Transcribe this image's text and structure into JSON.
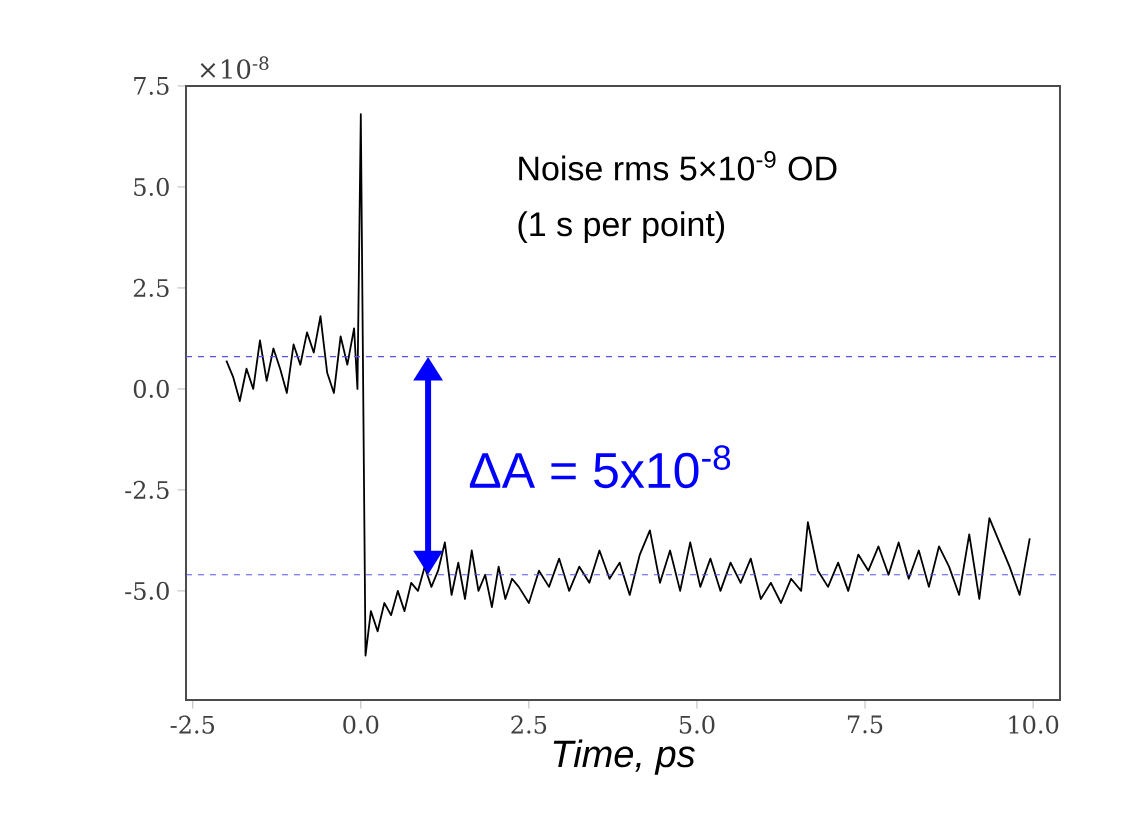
{
  "chart_data": {
    "type": "line",
    "xlabel": "Time, ps",
    "x": [
      -2.0,
      -1.9,
      -1.8,
      -1.7,
      -1.6,
      -1.5,
      -1.4,
      -1.3,
      -1.2,
      -1.1,
      -1.0,
      -0.9,
      -0.8,
      -0.7,
      -0.6,
      -0.5,
      -0.4,
      -0.3,
      -0.2,
      -0.1,
      -0.05,
      0.0,
      0.07,
      0.15,
      0.25,
      0.35,
      0.45,
      0.55,
      0.65,
      0.75,
      0.85,
      0.95,
      1.05,
      1.15,
      1.25,
      1.35,
      1.45,
      1.55,
      1.65,
      1.75,
      1.85,
      1.95,
      2.05,
      2.15,
      2.25,
      2.35,
      2.5,
      2.65,
      2.8,
      2.95,
      3.1,
      3.25,
      3.4,
      3.55,
      3.7,
      3.85,
      4.0,
      4.15,
      4.3,
      4.45,
      4.6,
      4.75,
      4.9,
      5.05,
      5.2,
      5.35,
      5.5,
      5.65,
      5.8,
      5.95,
      6.1,
      6.25,
      6.4,
      6.55,
      6.65,
      6.8,
      6.95,
      7.1,
      7.25,
      7.4,
      7.55,
      7.7,
      7.85,
      8.0,
      8.15,
      8.3,
      8.45,
      8.6,
      8.75,
      8.9,
      9.05,
      9.2,
      9.35,
      9.5,
      9.65,
      9.8,
      9.95
    ],
    "series": [
      {
        "color": "#000000",
        "values": [
          0.7,
          0.3,
          -0.3,
          0.5,
          0.0,
          1.2,
          0.2,
          1.0,
          0.5,
          -0.1,
          1.1,
          0.6,
          1.4,
          0.9,
          1.8,
          0.4,
          -0.1,
          1.3,
          0.6,
          1.5,
          0.0,
          6.8,
          -6.6,
          -5.5,
          -6.0,
          -5.3,
          -5.6,
          -5.0,
          -5.5,
          -4.8,
          -5.0,
          -4.4,
          -4.9,
          -4.5,
          -3.8,
          -5.1,
          -4.3,
          -5.2,
          -4.0,
          -5.0,
          -4.6,
          -5.4,
          -4.4,
          -5.2,
          -4.7,
          -4.9,
          -5.3,
          -4.5,
          -4.9,
          -4.2,
          -5.0,
          -4.4,
          -4.8,
          -4.0,
          -4.7,
          -4.3,
          -5.1,
          -4.1,
          -3.5,
          -4.8,
          -4.0,
          -5.0,
          -3.8,
          -4.9,
          -4.2,
          -5.0,
          -4.3,
          -4.8,
          -4.2,
          -5.2,
          -4.8,
          -5.3,
          -4.7,
          -5.0,
          -3.3,
          -4.5,
          -4.9,
          -4.3,
          -5.0,
          -4.1,
          -4.5,
          -3.9,
          -4.6,
          -3.8,
          -4.7,
          -4.0,
          -4.9,
          -3.9,
          -4.4,
          -5.1,
          -3.6,
          -5.2,
          -3.2,
          -3.8,
          -4.4,
          -5.1,
          -3.7
        ]
      }
    ],
    "xlim": [
      -2.6,
      10.4
    ],
    "ylim": [
      -7.7,
      7.5
    ],
    "xticks": [
      -2.5,
      {
        "value": 0,
        "label": "0.0"
      },
      2.5,
      {
        "value": 5,
        "label": "5.0"
      },
      7.5,
      {
        "value": 10,
        "label": "10.0"
      }
    ],
    "yticks": [
      -2.5,
      {
        "value": -5,
        "label": "-5.0"
      },
      {
        "value": 0,
        "label": "0.0"
      },
      2.5,
      {
        "value": 5,
        "label": "5.0"
      },
      7.5
    ],
    "marker": "none",
    "line_style": "solid",
    "grid": false,
    "ref_lines": [
      {
        "axis": "y",
        "value": 0.8,
        "color": "#5555ee",
        "line_style": "dashed"
      },
      {
        "axis": "y",
        "value": -4.6,
        "color": "#5555ee",
        "line_style": "dashed"
      }
    ],
    "annotations": [
      "×10$^{-8}$",
      "Noise rms 5×10$^{-9}$ OD",
      "(1 s per point)",
      "ΔA = 5x10$^{-8}$"
    ]
  }
}
